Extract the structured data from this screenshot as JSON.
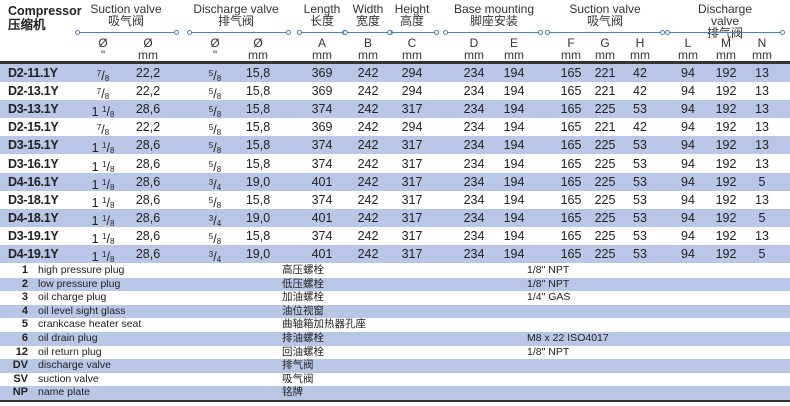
{
  "header": {
    "compressor_en": "Compressor",
    "compressor_cn": "压缩机",
    "groups": [
      {
        "en": "Suction valve",
        "cn": "吸气阀"
      },
      {
        "en": "Discharge valve",
        "cn": "排气阀"
      },
      {
        "en": "Length",
        "cn": "长度"
      },
      {
        "en": "Width",
        "cn": "宽度"
      },
      {
        "en": "Height",
        "cn": "高度"
      },
      {
        "en": "Base mounting",
        "cn": "脚座安装"
      },
      {
        "en": "Suction valve",
        "cn": "吸气阀"
      },
      {
        "en": "Discharge valve",
        "cn": "排气阀"
      }
    ],
    "subheaders": [
      {
        "a": "Ø",
        "b": "\""
      },
      {
        "a": "Ø",
        "b": "mm"
      },
      {
        "a": "Ø",
        "b": "\""
      },
      {
        "a": "Ø",
        "b": "mm"
      },
      {
        "a": "A",
        "b": "mm"
      },
      {
        "a": "B",
        "b": "mm"
      },
      {
        "a": "C",
        "b": "mm"
      },
      {
        "a": "D",
        "b": "mm"
      },
      {
        "a": "E",
        "b": "mm"
      },
      {
        "a": "F",
        "b": "mm"
      },
      {
        "a": "G",
        "b": "mm"
      },
      {
        "a": "H",
        "b": "mm"
      },
      {
        "a": "L",
        "b": "mm"
      },
      {
        "a": "M",
        "b": "mm"
      },
      {
        "a": "N",
        "b": "mm"
      }
    ]
  },
  "rows": [
    {
      "model": "D2-11.1Y",
      "sv_in": {
        "whole": "",
        "num": "7",
        "den": "8"
      },
      "sv_mm": "22,2",
      "dv_in": {
        "whole": "",
        "num": "5",
        "den": "8"
      },
      "dv_mm": "15,8",
      "vals": [
        "369",
        "242",
        "294",
        "234",
        "194",
        "165",
        "221",
        "42",
        "94",
        "192",
        "13"
      ]
    },
    {
      "model": "D2-13.1Y",
      "sv_in": {
        "whole": "",
        "num": "7",
        "den": "8"
      },
      "sv_mm": "22,2",
      "dv_in": {
        "whole": "",
        "num": "5",
        "den": "8"
      },
      "dv_mm": "15,8",
      "vals": [
        "369",
        "242",
        "294",
        "234",
        "194",
        "165",
        "221",
        "42",
        "94",
        "192",
        "13"
      ]
    },
    {
      "model": "D3-13.1Y",
      "sv_in": {
        "whole": "1 ",
        "num": "1",
        "den": "8"
      },
      "sv_mm": "28,6",
      "dv_in": {
        "whole": "",
        "num": "5",
        "den": "8"
      },
      "dv_mm": "15,8",
      "vals": [
        "374",
        "242",
        "317",
        "234",
        "194",
        "165",
        "225",
        "53",
        "94",
        "192",
        "13"
      ]
    },
    {
      "model": "D2-15.1Y",
      "sv_in": {
        "whole": "",
        "num": "7",
        "den": "8"
      },
      "sv_mm": "22,2",
      "dv_in": {
        "whole": "",
        "num": "5",
        "den": "8"
      },
      "dv_mm": "15,8",
      "vals": [
        "369",
        "242",
        "294",
        "234",
        "194",
        "165",
        "221",
        "42",
        "94",
        "192",
        "13"
      ]
    },
    {
      "model": "D3-15.1Y",
      "sv_in": {
        "whole": "1 ",
        "num": "1",
        "den": "8"
      },
      "sv_mm": "28,6",
      "dv_in": {
        "whole": "",
        "num": "5",
        "den": "8"
      },
      "dv_mm": "15,8",
      "vals": [
        "374",
        "242",
        "317",
        "234",
        "194",
        "165",
        "225",
        "53",
        "94",
        "192",
        "13"
      ]
    },
    {
      "model": "D3-16.1Y",
      "sv_in": {
        "whole": "1 ",
        "num": "1",
        "den": "8"
      },
      "sv_mm": "28,6",
      "dv_in": {
        "whole": "",
        "num": "5",
        "den": "8"
      },
      "dv_mm": "15,8",
      "vals": [
        "374",
        "242",
        "317",
        "234",
        "194",
        "165",
        "225",
        "53",
        "94",
        "192",
        "13"
      ]
    },
    {
      "model": "D4-16.1Y",
      "sv_in": {
        "whole": "1 ",
        "num": "1",
        "den": "8"
      },
      "sv_mm": "28,6",
      "dv_in": {
        "whole": "",
        "num": "3",
        "den": "4"
      },
      "dv_mm": "19,0",
      "vals": [
        "401",
        "242",
        "317",
        "234",
        "194",
        "165",
        "225",
        "53",
        "94",
        "192",
        "5"
      ]
    },
    {
      "model": "D3-18.1Y",
      "sv_in": {
        "whole": "1 ",
        "num": "1",
        "den": "8"
      },
      "sv_mm": "28,6",
      "dv_in": {
        "whole": "",
        "num": "5",
        "den": "8"
      },
      "dv_mm": "15,8",
      "vals": [
        "374",
        "242",
        "317",
        "234",
        "194",
        "165",
        "225",
        "53",
        "94",
        "192",
        "13"
      ]
    },
    {
      "model": "D4-18.1Y",
      "sv_in": {
        "whole": "1 ",
        "num": "1",
        "den": "8"
      },
      "sv_mm": "28,6",
      "dv_in": {
        "whole": "",
        "num": "3",
        "den": "4"
      },
      "dv_mm": "19,0",
      "vals": [
        "401",
        "242",
        "317",
        "234",
        "194",
        "165",
        "225",
        "53",
        "94",
        "192",
        "5"
      ]
    },
    {
      "model": "D3-19.1Y",
      "sv_in": {
        "whole": "1 ",
        "num": "1",
        "den": "8"
      },
      "sv_mm": "28,6",
      "dv_in": {
        "whole": "",
        "num": "5",
        "den": "8"
      },
      "dv_mm": "15,8",
      "vals": [
        "374",
        "242",
        "317",
        "234",
        "194",
        "165",
        "225",
        "53",
        "94",
        "192",
        "13"
      ]
    },
    {
      "model": "D4-19.1Y",
      "sv_in": {
        "whole": "1 ",
        "num": "1",
        "den": "8"
      },
      "sv_mm": "28,6",
      "dv_in": {
        "whole": "",
        "num": "3",
        "den": "4"
      },
      "dv_mm": "19,0",
      "vals": [
        "401",
        "242",
        "317",
        "234",
        "194",
        "165",
        "225",
        "53",
        "94",
        "192",
        "5"
      ]
    }
  ],
  "legend": [
    {
      "num": "1",
      "en": "high pressure plug",
      "cn": "高压螺栓",
      "spec": "1/8\" NPT"
    },
    {
      "num": "2",
      "en": "low pressure plug",
      "cn": "低压螺栓",
      "spec": "1/8\" NPT"
    },
    {
      "num": "3",
      "en": "oil charge plug",
      "cn": "加油螺栓",
      "spec": "1/4\" GAS"
    },
    {
      "num": "4",
      "en": "oil level sight glass",
      "cn": "油位视窗",
      "spec": ""
    },
    {
      "num": "5",
      "en": "crankcase heater seat",
      "cn": "曲轴箱加热器孔座",
      "spec": ""
    },
    {
      "num": "6",
      "en": "oil drain plug",
      "cn": "排油螺栓",
      "spec": "M8 x 22 ISO4017"
    },
    {
      "num": "12",
      "en": "oil return plug",
      "cn": "回油螺栓",
      "spec": "1/8\" NPT"
    },
    {
      "num": "DV",
      "en": "discharge valve",
      "cn": "排气阀",
      "spec": ""
    },
    {
      "num": "SV",
      "en": "suction valve",
      "cn": "吸气阀",
      "spec": ""
    },
    {
      "num": "NP",
      "en": "name plate",
      "cn": "铭牌",
      "spec": ""
    }
  ],
  "colors": {
    "row_band": "#b9c6e6",
    "rule": "#4a7fc0"
  }
}
